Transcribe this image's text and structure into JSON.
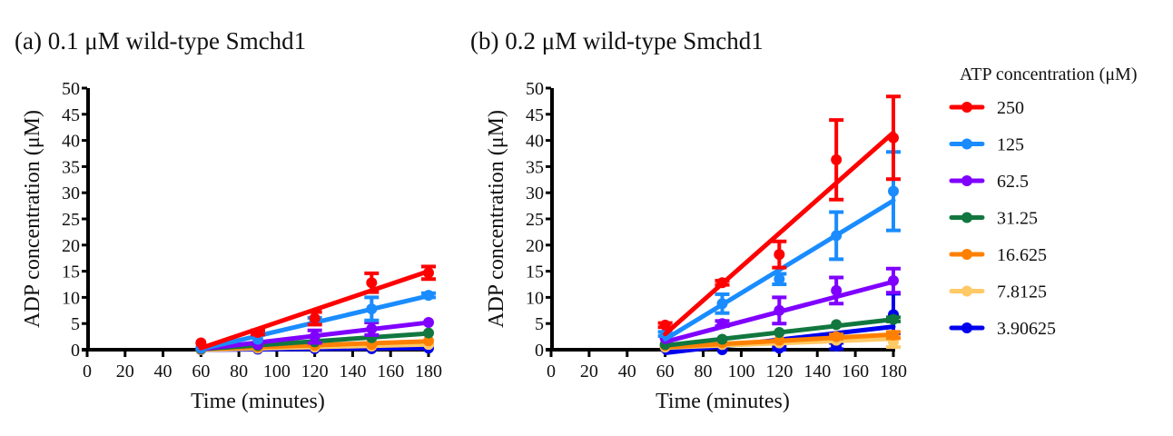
{
  "chart_data": [
    {
      "type": "line",
      "title": "(a) 0.1 μM wild-type Smchd1",
      "xlabel": "Time (minutes)",
      "ylabel": "ADP concentration (μM)",
      "xlim": [
        0,
        180
      ],
      "ylim": [
        0,
        50
      ],
      "xticks": [
        0,
        20,
        40,
        60,
        80,
        100,
        120,
        140,
        160,
        180
      ],
      "yticks": [
        0,
        5,
        10,
        15,
        20,
        25,
        30,
        35,
        40,
        45,
        50
      ],
      "grid": false,
      "x": [
        60,
        90,
        120,
        150,
        180
      ],
      "series": [
        {
          "name": "250",
          "color": "#ff0000",
          "values": [
            1.3,
            3.3,
            6.0,
            12.8,
            14.7
          ],
          "errors": [
            0.3,
            0.4,
            1.2,
            1.8,
            1.2
          ],
          "fit": [
            0.3,
            15.0
          ]
        },
        {
          "name": "125",
          "color": "#1a8cff",
          "values": [
            0.3,
            2.0,
            5.5,
            7.8,
            10.4
          ],
          "errors": [
            0.2,
            0.3,
            0.6,
            2.2,
            0.4
          ],
          "fit": [
            0.1,
            10.3
          ]
        },
        {
          "name": "62.5",
          "color": "#8000ff",
          "values": [
            0.3,
            1.0,
            2.5,
            4.0,
            5.2
          ],
          "errors": [
            0.1,
            0.2,
            1.2,
            1.2,
            0.3
          ],
          "fit": [
            0.1,
            5.2
          ]
        },
        {
          "name": "31.25",
          "color": "#11773f",
          "values": [
            0.2,
            0.8,
            1.5,
            2.3,
            3.2
          ],
          "errors": [
            0.1,
            0.2,
            0.3,
            0.3,
            0.3
          ],
          "fit": [
            0.1,
            3.1
          ]
        },
        {
          "name": "16.625",
          "color": "#ff8000",
          "values": [
            0.1,
            0.5,
            0.8,
            1.0,
            1.7
          ],
          "errors": [
            0.1,
            0.1,
            0.2,
            0.2,
            0.3
          ],
          "fit": [
            0.1,
            1.6
          ]
        },
        {
          "name": "7.8125",
          "color": "#ffc966",
          "values": [
            0.05,
            0.3,
            0.5,
            0.7,
            1.0
          ],
          "errors": [
            0.1,
            0.1,
            0.1,
            0.2,
            0.2
          ],
          "fit": [
            0.0,
            1.0
          ]
        },
        {
          "name": "3.90625",
          "color": "#0000ee",
          "values": [
            0.0,
            0.1,
            0.2,
            0.2,
            0.3
          ],
          "errors": [
            0.1,
            0.1,
            0.1,
            0.1,
            0.1
          ],
          "fit": [
            0.0,
            0.3
          ]
        }
      ]
    },
    {
      "type": "line",
      "title": "(b) 0.2 μM wild-type Smchd1",
      "xlabel": "Time (minutes)",
      "ylabel": "ADP concentration (μM)",
      "xlim": [
        0,
        180
      ],
      "ylim": [
        0,
        50
      ],
      "xticks": [
        0,
        20,
        40,
        60,
        80,
        100,
        120,
        140,
        160,
        180
      ],
      "yticks": [
        0,
        5,
        10,
        15,
        20,
        25,
        30,
        35,
        40,
        45,
        50
      ],
      "grid": false,
      "x": [
        60,
        90,
        120,
        150,
        180
      ],
      "series": [
        {
          "name": "250",
          "color": "#ff0000",
          "values": [
            4.7,
            12.8,
            18.2,
            36.3,
            40.5
          ],
          "errors": [
            0.4,
            0.4,
            2.5,
            7.6,
            7.9
          ],
          "fit": [
            3.0,
            41.5
          ]
        },
        {
          "name": "125",
          "color": "#1a8cff",
          "values": [
            3.0,
            8.8,
            13.5,
            21.8,
            30.3
          ],
          "errors": [
            0.4,
            1.8,
            1.0,
            4.5,
            7.5
          ],
          "fit": [
            2.0,
            28.5
          ]
        },
        {
          "name": "62.5",
          "color": "#8000ff",
          "values": [
            2.2,
            5.0,
            7.5,
            11.3,
            13.2
          ],
          "errors": [
            0.3,
            0.5,
            2.5,
            2.5,
            2.3
          ],
          "fit": [
            1.5,
            13.0
          ]
        },
        {
          "name": "31.25",
          "color": "#11773f",
          "values": [
            1.0,
            2.0,
            3.3,
            4.8,
            5.8
          ],
          "errors": [
            0.2,
            0.3,
            0.3,
            0.3,
            0.4
          ],
          "fit": [
            0.8,
            5.8
          ]
        },
        {
          "name": "16.625",
          "color": "#ff8000",
          "values": [
            0.8,
            1.3,
            1.8,
            2.5,
            2.8
          ],
          "errors": [
            0.2,
            0.2,
            0.3,
            0.4,
            0.6
          ],
          "fit": [
            0.5,
            2.9
          ]
        },
        {
          "name": "7.8125",
          "color": "#ffc966",
          "values": [
            0.5,
            1.0,
            1.3,
            1.8,
            1.5
          ],
          "errors": [
            0.2,
            0.2,
            0.2,
            0.3,
            1.0
          ],
          "fit": [
            0.4,
            2.1
          ]
        },
        {
          "name": "3.90625",
          "color": "#0000ee",
          "values": [
            0.3,
            0.0,
            0.3,
            0.7,
            6.7
          ],
          "errors": [
            0.2,
            0.2,
            0.4,
            0.6,
            4.0
          ],
          "fit": [
            -0.6,
            4.4
          ]
        }
      ]
    }
  ],
  "legend": {
    "title": "ATP concentration (μM)",
    "placement": "right",
    "items": [
      {
        "label": "250",
        "color": "#ff0000"
      },
      {
        "label": "125",
        "color": "#1a8cff"
      },
      {
        "label": "62.5",
        "color": "#8000ff"
      },
      {
        "label": "31.25",
        "color": "#11773f"
      },
      {
        "label": "16.625",
        "color": "#ff8000"
      },
      {
        "label": "7.8125",
        "color": "#ffc966"
      },
      {
        "label": "3.90625",
        "color": "#0000ee"
      }
    ]
  }
}
